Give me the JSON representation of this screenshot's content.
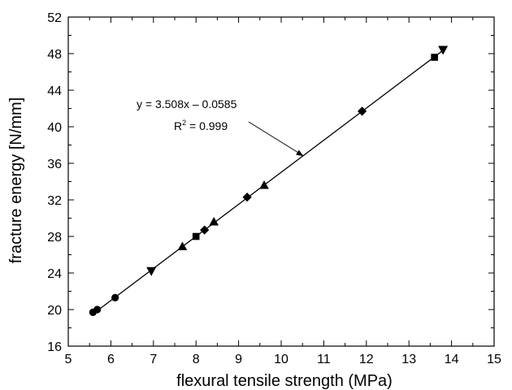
{
  "chart_data": {
    "type": "scatter",
    "xlabel": "flexural tensile strength (MPa)",
    "ylabel": "fracture energy [N/mm]",
    "xlim": [
      5,
      15
    ],
    "ylim": [
      16,
      52
    ],
    "xticks": [
      5,
      6,
      7,
      8,
      9,
      10,
      11,
      12,
      13,
      14,
      15
    ],
    "yticks": [
      16,
      20,
      24,
      28,
      32,
      36,
      40,
      44,
      48,
      52
    ],
    "grid": false,
    "series": [
      {
        "marker": "circle",
        "points": [
          [
            5.58,
            19.7
          ],
          [
            5.68,
            20.0
          ],
          [
            6.1,
            21.3
          ]
        ]
      },
      {
        "marker": "triangle-down",
        "points": [
          [
            6.95,
            24.2
          ],
          [
            13.8,
            48.4
          ]
        ]
      },
      {
        "marker": "triangle-up",
        "points": [
          [
            7.68,
            26.9
          ],
          [
            8.42,
            29.6
          ],
          [
            9.6,
            33.6
          ]
        ]
      },
      {
        "marker": "square",
        "points": [
          [
            8.0,
            28.0
          ],
          [
            13.6,
            47.6
          ]
        ]
      },
      {
        "marker": "diamond",
        "points": [
          [
            8.2,
            28.7
          ],
          [
            9.2,
            32.3
          ],
          [
            11.9,
            41.7
          ]
        ]
      }
    ],
    "fit_line": {
      "slope": 3.508,
      "intercept": -0.0585,
      "x_range": [
        5.55,
        13.85
      ]
    },
    "annotation": {
      "equation": "y = 3.508x – 0.0585",
      "r2_label": "R",
      "r2_sup": "2",
      "r2_value": " = 0.999"
    },
    "colors": {
      "marks": "#000000",
      "background": "#ffffff"
    }
  }
}
